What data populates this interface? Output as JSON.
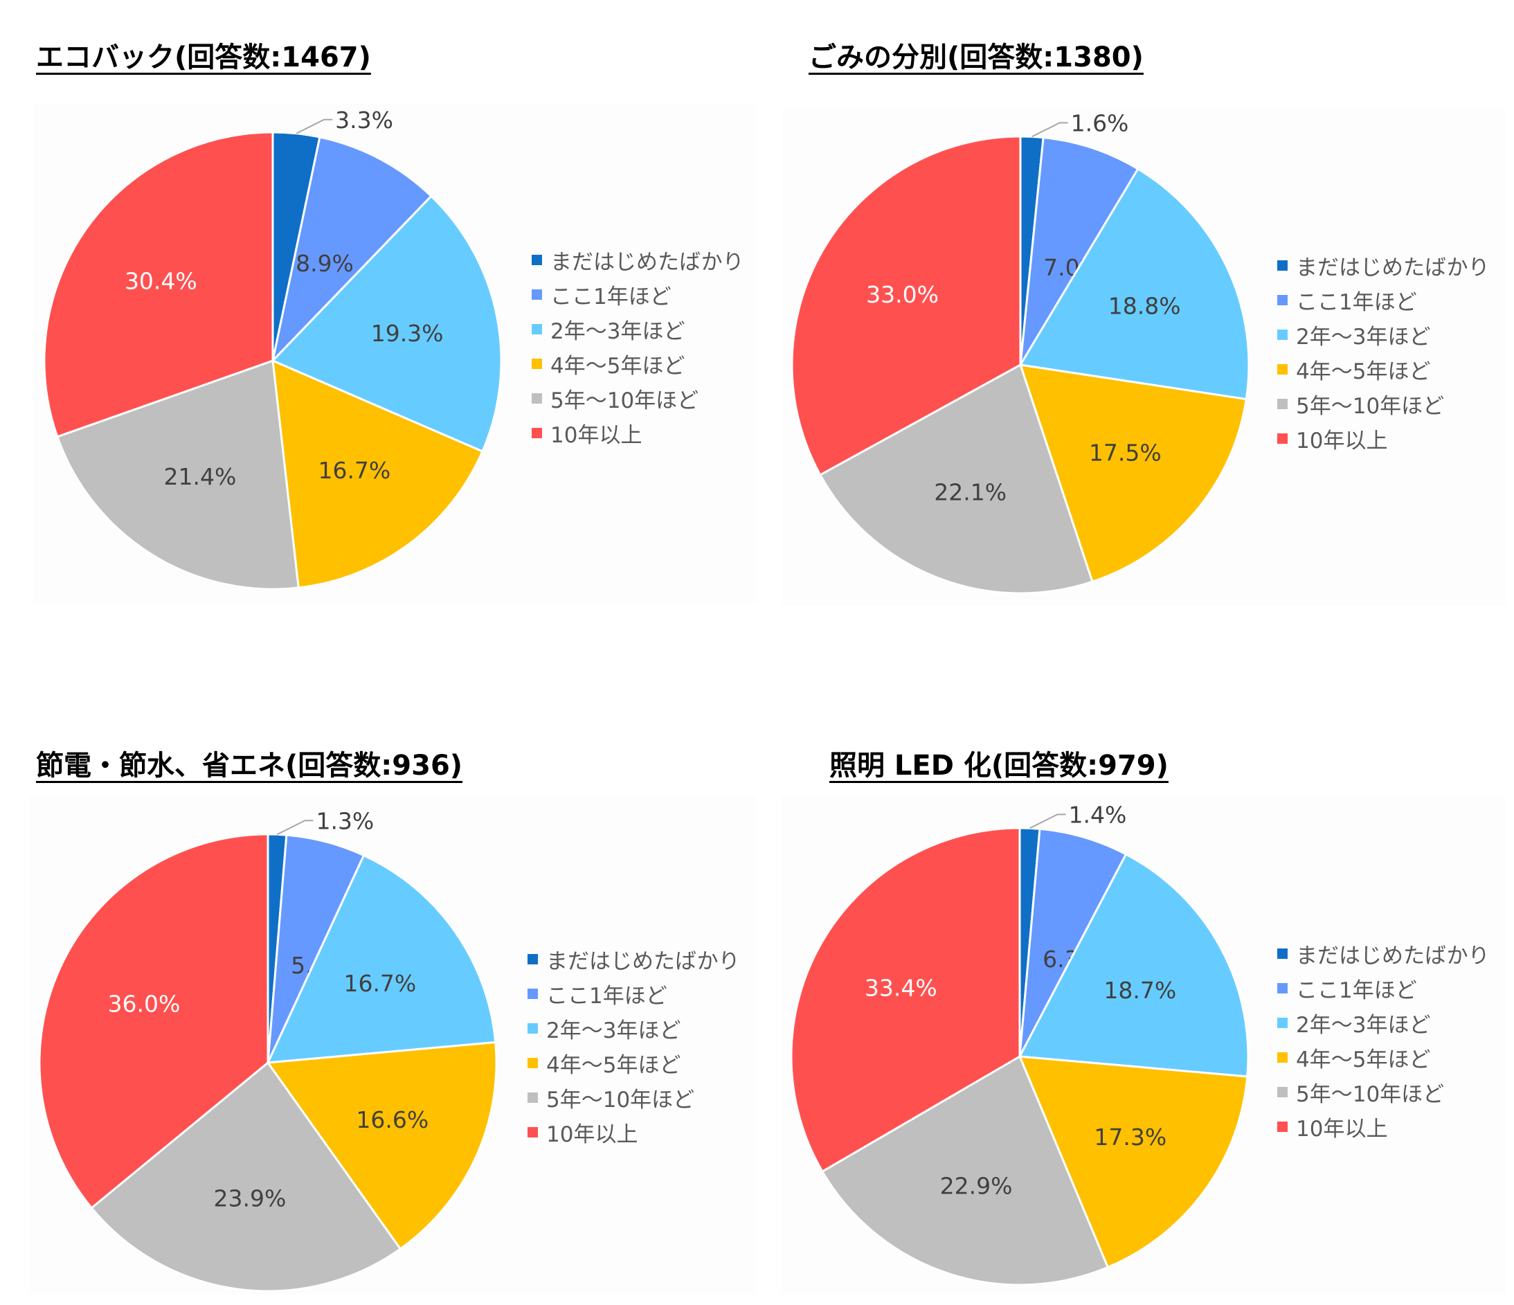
{
  "legend_labels": [
    "まだはじめたばかり",
    "ここ1年ほど",
    "2年〜3年ほど",
    "4年〜5年ほど",
    "5年〜10年ほど",
    "10年以上"
  ],
  "colors": [
    "#0f6fc6",
    "#6699ff",
    "#66ccff",
    "#ffc000",
    "#bfbfbf",
    "#ff5050"
  ],
  "chart_data": [
    {
      "type": "pie",
      "title": "エコバック(回答数:1467)",
      "categories": [
        "まだはじめたばかり",
        "ここ1年ほど",
        "2年〜3年ほど",
        "4年〜5年ほど",
        "5年〜10年ほど",
        "10年以上"
      ],
      "values": [
        3.3,
        8.9,
        19.3,
        16.7,
        21.4,
        30.4
      ],
      "labels": [
        "3.3%",
        "8.9%",
        "19.3%",
        "16.7%",
        "21.4%",
        "30.4%"
      ],
      "legend_position": "right"
    },
    {
      "type": "pie",
      "title": "ごみの分別(回答数:1380)",
      "categories": [
        "まだはじめたばかり",
        "ここ1年ほど",
        "2年〜3年ほど",
        "4年〜5年ほど",
        "5年〜10年ほど",
        "10年以上"
      ],
      "values": [
        1.6,
        7.0,
        18.8,
        17.5,
        22.1,
        33.0
      ],
      "labels": [
        "1.6%",
        "7.0%",
        "18.8%",
        "17.5%",
        "22.1%",
        "33.0%"
      ],
      "legend_position": "right"
    },
    {
      "type": "pie",
      "title": "節電・節水、省エネ(回答数:936)",
      "categories": [
        "まだはじめたばかり",
        "ここ1年ほど",
        "2年〜3年ほど",
        "4年〜5年ほど",
        "5年〜10年ほど",
        "10年以上"
      ],
      "values": [
        1.3,
        5.6,
        16.7,
        16.6,
        23.9,
        36.0
      ],
      "labels": [
        "1.3%",
        "5.6%",
        "16.7%",
        "16.6%",
        "23.9%",
        "36.0%"
      ],
      "legend_position": "right"
    },
    {
      "type": "pie",
      "title": "照明 LED 化(回答数:979)",
      "categories": [
        "まだはじめたばかり",
        "ここ1年ほど",
        "2年〜3年ほど",
        "4年〜5年ほど",
        "5年〜10年ほど",
        "10年以上"
      ],
      "values": [
        1.4,
        6.3,
        18.7,
        17.3,
        22.9,
        33.4
      ],
      "labels": [
        "1.4%",
        "6.3%",
        "18.7%",
        "17.3%",
        "22.9%",
        "33.4%"
      ],
      "legend_position": "right"
    }
  ]
}
